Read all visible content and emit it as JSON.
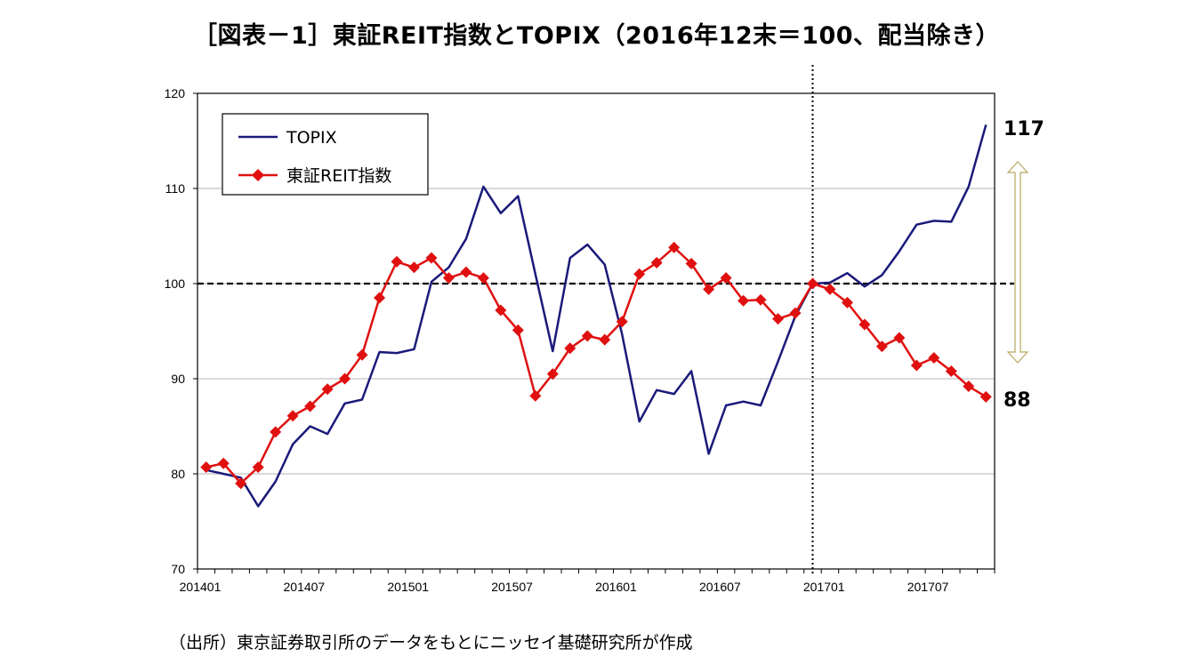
{
  "title": "［図表－1］東証REIT指数とTOPIX（2016年12末＝100、配当除き）",
  "source": "（出所）東京証券取引所のデータをもとにニッセイ基礎研究所が作成",
  "chart_data": {
    "type": "line",
    "x": [
      "201401",
      "201402",
      "201403",
      "201404",
      "201405",
      "201406",
      "201407",
      "201408",
      "201409",
      "201410",
      "201411",
      "201412",
      "201501",
      "201502",
      "201503",
      "201504",
      "201505",
      "201506",
      "201507",
      "201508",
      "201509",
      "201510",
      "201511",
      "201512",
      "201601",
      "201602",
      "201603",
      "201604",
      "201605",
      "201606",
      "201607",
      "201608",
      "201609",
      "201610",
      "201611",
      "201612",
      "201701",
      "201702",
      "201703",
      "201704",
      "201705",
      "201706",
      "201707",
      "201708",
      "201709",
      "201710"
    ],
    "x_tick_labels": [
      "201401",
      "201407",
      "201501",
      "201507",
      "201601",
      "201607",
      "201701",
      "201707"
    ],
    "ylim": [
      70,
      120
    ],
    "y_ticks": [
      70,
      80,
      90,
      100,
      110,
      120
    ],
    "grid": true,
    "reference_line": 100,
    "vertical_marker": "201612",
    "legend_position": "top-left",
    "series": [
      {
        "name": "TOPIX",
        "color": "#1a1a7a",
        "marker": "none",
        "values": [
          80.4,
          80.0,
          79.6,
          76.6,
          79.2,
          83.1,
          85.0,
          84.2,
          87.4,
          87.8,
          92.8,
          92.7,
          93.1,
          100.2,
          101.7,
          104.7,
          110.2,
          107.4,
          109.2,
          101.0,
          92.9,
          102.7,
          104.1,
          102.0,
          94.7,
          85.5,
          88.8,
          88.4,
          90.8,
          82.1,
          87.2,
          87.6,
          87.2,
          91.8,
          96.6,
          100.0,
          100.1,
          101.1,
          99.7,
          100.9,
          103.4,
          106.2,
          106.6,
          106.5,
          110.2,
          116.7
        ]
      },
      {
        "name": "東証REIT指数",
        "color": "#e01010",
        "marker": "diamond",
        "values": [
          80.7,
          81.1,
          79.0,
          80.7,
          84.4,
          86.1,
          87.1,
          88.9,
          90.0,
          92.5,
          98.5,
          102.3,
          101.7,
          102.7,
          100.6,
          101.2,
          100.6,
          97.2,
          95.1,
          88.2,
          90.5,
          93.2,
          94.5,
          94.1,
          96.0,
          101.0,
          102.2,
          103.8,
          102.1,
          99.4,
          100.6,
          98.2,
          98.3,
          96.3,
          96.9,
          100.0,
          99.4,
          98.0,
          95.7,
          93.4,
          94.3,
          91.4,
          92.2,
          90.8,
          89.2,
          88.1
        ]
      }
    ],
    "annotations": {
      "topix_end": "117",
      "reit_end": "88"
    }
  }
}
